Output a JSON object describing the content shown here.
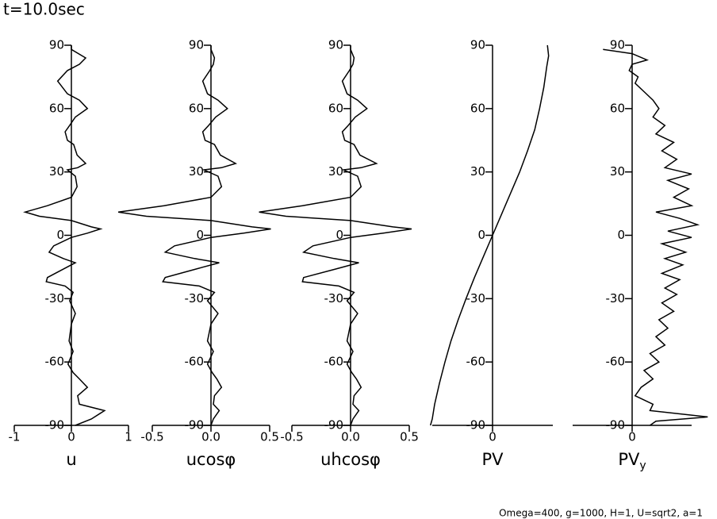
{
  "title": "t=10.0sec",
  "footer": "Omega=400, g=1000, H=1, U=sqrt2, a=1",
  "chart_data": [
    {
      "type": "line",
      "xlabel": "u",
      "color": "#000000",
      "xlim": [
        -1,
        1
      ],
      "xticks": [
        -1,
        0,
        1
      ],
      "ylim": [
        -90,
        90
      ],
      "yticks": [
        -90,
        -60,
        -30,
        0,
        30,
        60,
        90
      ],
      "y": [
        90,
        88,
        84,
        81,
        78,
        73,
        67,
        64,
        60,
        56,
        52,
        49,
        45,
        43,
        38,
        34,
        32,
        31,
        28,
        23,
        18,
        14,
        11,
        9,
        7,
        4,
        3,
        1,
        -1,
        -5,
        -8,
        -11,
        -13,
        -16,
        -20,
        -22,
        -24,
        -27,
        -31,
        -37,
        -42,
        -50,
        -55,
        -61,
        -65,
        -68,
        -72,
        -76,
        -80,
        -83,
        -87,
        -90
      ],
      "values": [
        0,
        0,
        0.25,
        0.14,
        -0.07,
        -0.24,
        -0.07,
        0.14,
        0.28,
        0.07,
        -0.03,
        -0.11,
        -0.07,
        0.04,
        0.1,
        0.25,
        0.11,
        -0.07,
        0.07,
        0.1,
        0,
        -0.42,
        -0.81,
        -0.56,
        0,
        0.35,
        0.51,
        0.28,
        0,
        -0.31,
        -0.39,
        -0.14,
        0.07,
        -0.14,
        -0.42,
        -0.44,
        -0.11,
        0.03,
        -0.03,
        0.07,
        0,
        -0.04,
        0.03,
        -0.06,
        0.03,
        0.14,
        0.28,
        0.11,
        0.14,
        0.58,
        0.35,
        0.07
      ]
    },
    {
      "type": "line",
      "xlabel": "ucosφ",
      "color": "#000000",
      "xlim": [
        -0.5,
        0.5
      ],
      "xticks": [
        -0.5,
        {
          "value": 0,
          "label": "0.0"
        },
        0.5
      ],
      "ylim": [
        -90,
        90
      ],
      "yticks": [
        -90,
        -60,
        -30,
        0,
        30,
        60,
        90
      ],
      "y": [
        90,
        88,
        84,
        81,
        78,
        73,
        67,
        64,
        60,
        56,
        52,
        49,
        45,
        43,
        38,
        34,
        32,
        31,
        28,
        23,
        18,
        14,
        11,
        9,
        7,
        4,
        3,
        1,
        -1,
        -5,
        -8,
        -11,
        -13,
        -16,
        -20,
        -22,
        -24,
        -27,
        -31,
        -37,
        -42,
        -50,
        -55,
        -61,
        -65,
        -68,
        -72,
        -76,
        -80,
        -83,
        -87,
        -90
      ],
      "values": [
        0,
        0,
        0.03,
        0.02,
        -0.01,
        -0.07,
        -0.03,
        0.06,
        0.14,
        0.04,
        -0.02,
        -0.07,
        -0.05,
        0.03,
        0.08,
        0.21,
        0.09,
        -0.06,
        0.06,
        0.09,
        0,
        -0.4,
        -0.79,
        -0.55,
        0,
        0.35,
        0.51,
        0.28,
        0,
        -0.31,
        -0.39,
        -0.14,
        0.07,
        -0.13,
        -0.39,
        -0.41,
        -0.1,
        0.03,
        -0.03,
        0.06,
        0,
        -0.03,
        0.02,
        -0.03,
        0.01,
        0.05,
        0.09,
        0.03,
        0.02,
        0.07,
        0.02,
        0
      ]
    },
    {
      "type": "line",
      "xlabel": "uhcosφ",
      "color": "#000000",
      "xlim": [
        -0.5,
        0.5
      ],
      "xticks": [
        -0.5,
        {
          "value": 0,
          "label": "0.0"
        },
        0.5
      ],
      "ylim": [
        -90,
        90
      ],
      "yticks": [
        -90,
        -60,
        -30,
        0,
        30,
        60,
        90
      ],
      "y": [
        90,
        88,
        84,
        81,
        78,
        73,
        67,
        64,
        60,
        56,
        52,
        49,
        45,
        43,
        38,
        34,
        32,
        31,
        28,
        23,
        18,
        14,
        11,
        9,
        7,
        4,
        3,
        1,
        -1,
        -5,
        -8,
        -11,
        -13,
        -16,
        -20,
        -22,
        -24,
        -27,
        -31,
        -37,
        -42,
        -50,
        -55,
        -61,
        -65,
        -68,
        -72,
        -76,
        -80,
        -83,
        -87,
        -90
      ],
      "values": [
        0,
        0,
        0.03,
        0.02,
        -0.01,
        -0.07,
        -0.03,
        0.06,
        0.14,
        0.04,
        -0.02,
        -0.07,
        -0.05,
        0.03,
        0.08,
        0.22,
        0.09,
        -0.06,
        0.06,
        0.09,
        0,
        -0.41,
        -0.78,
        -0.55,
        0,
        0.36,
        0.52,
        0.28,
        0,
        -0.32,
        -0.4,
        -0.14,
        0.07,
        -0.13,
        -0.4,
        -0.41,
        -0.1,
        0.03,
        -0.03,
        0.06,
        0,
        -0.03,
        0.02,
        -0.03,
        0.01,
        0.05,
        0.09,
        0.03,
        0.02,
        0.07,
        0.02,
        0
      ]
    },
    {
      "type": "line",
      "xlabel": "PV",
      "color": "#000000",
      "xlim": [
        -1,
        1
      ],
      "xticks": [
        0
      ],
      "ylim": [
        -90,
        90
      ],
      "yticks": [
        -90,
        -60,
        -30,
        0,
        30,
        60,
        90
      ],
      "y": [
        90,
        85,
        80,
        70,
        60,
        50,
        40,
        30,
        20,
        10,
        0,
        -10,
        -20,
        -30,
        -40,
        -50,
        -60,
        -70,
        -80,
        -87,
        -90
      ],
      "values": [
        0.91,
        0.93,
        0.9,
        0.85,
        0.78,
        0.7,
        0.58,
        0.45,
        0.3,
        0.15,
        0,
        -0.15,
        -0.3,
        -0.44,
        -0.57,
        -0.69,
        -0.79,
        -0.88,
        -0.96,
        -1,
        -1.03
      ]
    },
    {
      "type": "line",
      "xlabel": "PV",
      "xlabel_sub": "y",
      "color": "#000000",
      "xlim": [
        -1,
        1
      ],
      "xticks": [
        0
      ],
      "ylim": [
        -90,
        90
      ],
      "yticks": [
        -90,
        -60,
        -30,
        0,
        30,
        60,
        90
      ],
      "y": [
        88,
        86,
        83,
        81,
        78,
        75,
        72,
        68,
        64,
        60,
        56,
        52,
        48,
        44,
        40,
        36,
        32,
        29,
        26,
        22,
        18,
        14,
        11,
        8,
        5,
        2,
        -1,
        -4,
        -8,
        -11,
        -14,
        -18,
        -21,
        -25,
        -28,
        -32,
        -36,
        -40,
        -44,
        -48,
        -52,
        -56,
        -60,
        -64,
        -68,
        -72,
        -76,
        -80,
        -83,
        -86,
        -88,
        -90
      ],
      "values": [
        -0.49,
        0,
        0.25,
        0,
        -0.05,
        0.1,
        0.05,
        0.2,
        0.35,
        0.45,
        0.35,
        0.55,
        0.4,
        0.7,
        0.5,
        0.75,
        0.55,
        1,
        0.6,
        0.95,
        0.7,
        1,
        0.4,
        0.8,
        1.1,
        0.6,
        1,
        0.5,
        0.9,
        0.55,
        0.85,
        0.5,
        0.8,
        0.55,
        0.75,
        0.5,
        0.7,
        0.45,
        0.6,
        0.4,
        0.55,
        0.3,
        0.45,
        0.2,
        0.35,
        0.15,
        0.05,
        0.35,
        0.3,
        1.27,
        0.4,
        0.3
      ]
    }
  ]
}
